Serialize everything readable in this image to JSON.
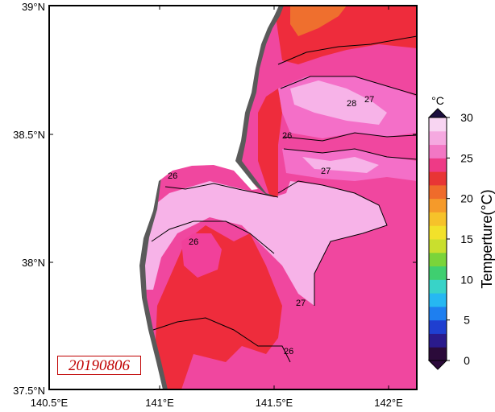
{
  "map": {
    "date": "20190806",
    "lat_ticks": [
      "39°N",
      "38.5°N",
      "38°N",
      "37.5°N"
    ],
    "lon_ticks": [
      "140.5°E",
      "141°E",
      "141.5°E",
      "142°E"
    ],
    "contour_labels": [
      "26",
      "26",
      "27",
      "28",
      "26",
      "27",
      "26",
      "27"
    ]
  },
  "colorbar": {
    "unit": "°C",
    "title": "Temperture(°C)",
    "ticks": [
      "0",
      "5",
      "10",
      "15",
      "20",
      "25",
      "30"
    ],
    "range": [
      0,
      30
    ],
    "colors": [
      "#2b0a3a",
      "#2a1a8c",
      "#1f3fd0",
      "#1e7ff0",
      "#26b8f2",
      "#38d3c8",
      "#3fcf70",
      "#7ad43a",
      "#c9df2e",
      "#f2e12a",
      "#f6c22a",
      "#f59a2a",
      "#ef6b2b",
      "#e83535",
      "#ee3a86",
      "#f277c4",
      "#f5a9e0",
      "#f8d5f2"
    ]
  },
  "palette": {
    "land": "#ffffff",
    "coast_shadow": "#5a5a5a",
    "sst_25": "#ee2c3c",
    "sst_26": "#f1409a",
    "sst_27": "#f46fc8",
    "sst_28": "#f7b3e8",
    "sst_warm_north": "#ef6f2e"
  }
}
